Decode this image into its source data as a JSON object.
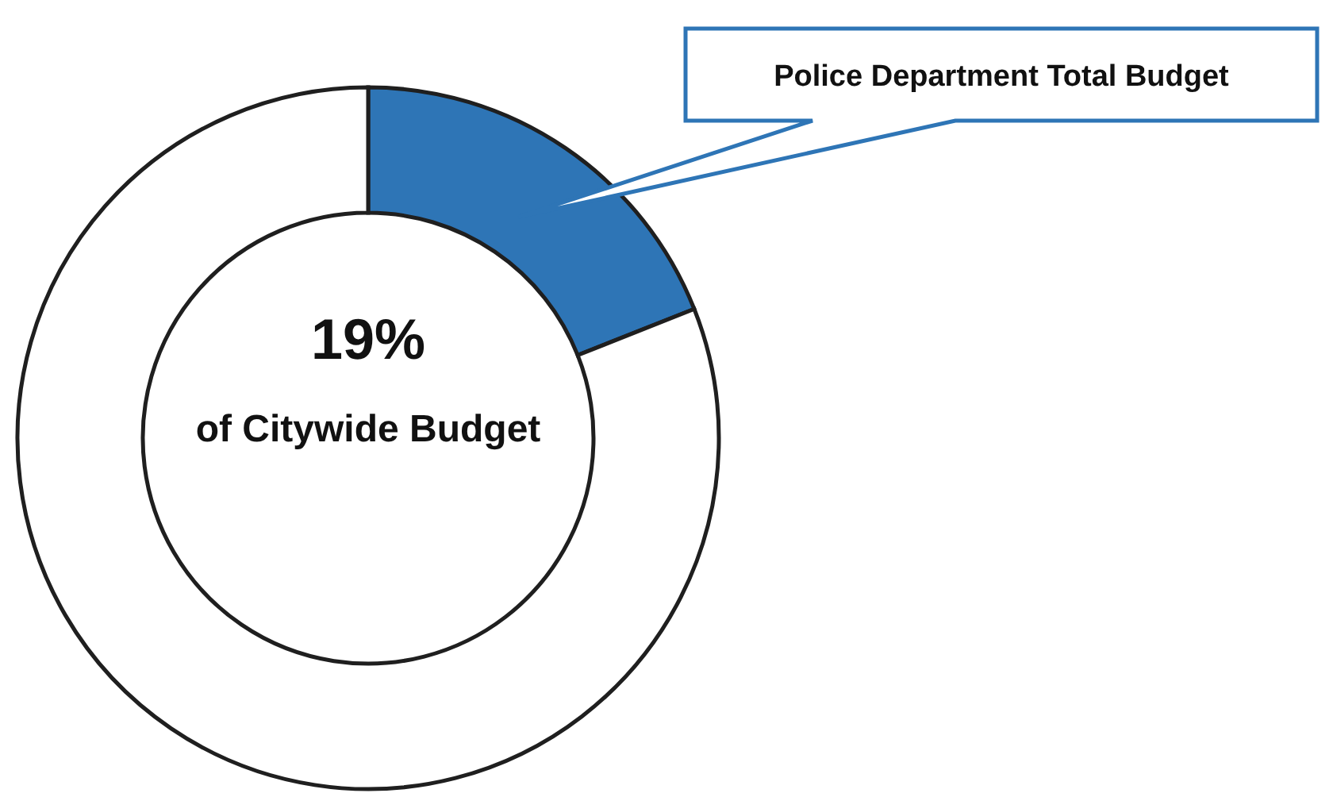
{
  "chart_data": {
    "type": "donut",
    "categories": [
      "Police Department Total Budget",
      null
    ],
    "values": [
      19,
      81
    ],
    "colors": [
      "#2e75b6",
      "#ffffff"
    ],
    "value_labels": [
      "19%",
      null
    ],
    "annotations": [
      "of Citywide Budget"
    ]
  }
}
